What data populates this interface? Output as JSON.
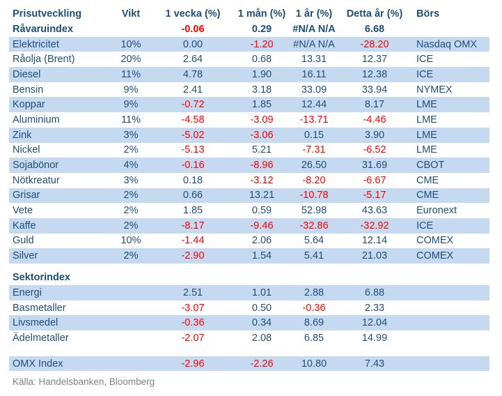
{
  "colors": {
    "text_navy": "#1F4E79",
    "negative_red": "#FF0000",
    "row_shade_blue": "#C5D9F1",
    "source_gray": "#808080"
  },
  "table": {
    "columns": [
      "Prisutveckling",
      "Vikt",
      "1 vecka (%)",
      "1 mån (%)",
      "1 år (%)",
      "Detta år (%)",
      "Börs"
    ],
    "rows": [
      {
        "name": "Råvaruindex",
        "bold": true,
        "shaded": false,
        "vikt": "",
        "w1": "-0.06",
        "m1": "0.29",
        "y1": "#N/A N/A",
        "ytd": "6.68",
        "bors": ""
      },
      {
        "name": "Elektricitet",
        "shaded": true,
        "vikt": "10%",
        "w1": "0.00",
        "m1": "-1.20",
        "y1": "#N/A N/A",
        "ytd": "-28.20",
        "bors": "Nasdaq OMX"
      },
      {
        "name": "Råolja (Brent)",
        "shaded": false,
        "vikt": "20%",
        "w1": "2.64",
        "m1": "0.68",
        "y1": "13.31",
        "ytd": "12.37",
        "bors": "ICE"
      },
      {
        "name": "Diesel",
        "shaded": true,
        "vikt": "11%",
        "w1": "4.78",
        "m1": "1.90",
        "y1": "16.11",
        "ytd": "12.38",
        "bors": "ICE"
      },
      {
        "name": "Bensin",
        "shaded": false,
        "vikt": "9%",
        "w1": "2.41",
        "m1": "3.18",
        "y1": "33.09",
        "ytd": "33.94",
        "bors": "NYMEX"
      },
      {
        "name": "Koppar",
        "shaded": true,
        "vikt": "9%",
        "w1": "-0.72",
        "m1": "1.85",
        "y1": "12.44",
        "ytd": "8.17",
        "bors": "LME"
      },
      {
        "name": "Aluminium",
        "shaded": false,
        "vikt": "11%",
        "w1": "-4.58",
        "m1": "-3.09",
        "y1": "-13.71",
        "ytd": "-4.46",
        "bors": "LME"
      },
      {
        "name": "Zink",
        "shaded": true,
        "vikt": "3%",
        "w1": "-5.02",
        "m1": "-3.06",
        "y1": "0.15",
        "ytd": "3.90",
        "bors": "LME"
      },
      {
        "name": "Nickel",
        "shaded": false,
        "vikt": "2%",
        "w1": "-5.13",
        "m1": "5.21",
        "y1": "-7.31",
        "ytd": "-6.52",
        "bors": "LME"
      },
      {
        "name": "Sojabönor",
        "shaded": true,
        "vikt": "4%",
        "w1": "-0.16",
        "m1": "-8.96",
        "y1": "26.50",
        "ytd": "31.69",
        "bors": "CBOT"
      },
      {
        "name": "Nötkreatur",
        "shaded": false,
        "vikt": "3%",
        "w1": "0.18",
        "m1": "-3.12",
        "y1": "-8.20",
        "ytd": "-6.67",
        "bors": "CME"
      },
      {
        "name": "Grisar",
        "shaded": true,
        "vikt": "2%",
        "w1": "0.66",
        "m1": "13.21",
        "y1": "-10.78",
        "ytd": "-5.17",
        "bors": "CME"
      },
      {
        "name": "Vete",
        "shaded": false,
        "vikt": "2%",
        "w1": "1.85",
        "m1": "0.59",
        "y1": "52.98",
        "ytd": "43.63",
        "bors": "Euronext"
      },
      {
        "name": "Kaffe",
        "shaded": true,
        "vikt": "2%",
        "w1": "-8.17",
        "m1": "-9.46",
        "y1": "-32.86",
        "ytd": "-32.92",
        "bors": "ICE"
      },
      {
        "name": "Guld",
        "shaded": false,
        "vikt": "10%",
        "w1": "-1.44",
        "m1": "2.06",
        "y1": "5.64",
        "ytd": "12.14",
        "bors": "COMEX"
      },
      {
        "name": "Silver",
        "shaded": true,
        "vikt": "2%",
        "w1": "-2.90",
        "m1": "1.54",
        "y1": "5.41",
        "ytd": "21.03",
        "bors": "COMEX"
      },
      {
        "type": "spacer",
        "height": 8
      },
      {
        "type": "section",
        "name": "Sektorindex"
      },
      {
        "name": "Energi",
        "shaded": true,
        "vikt": "",
        "w1": "2.51",
        "m1": "1.01",
        "y1": "2.88",
        "ytd": "6.88",
        "bors": ""
      },
      {
        "name": "Basmetaller",
        "shaded": false,
        "vikt": "",
        "w1": "-3.07",
        "m1": "0.50",
        "y1": "-0.36",
        "ytd": "2.33",
        "bors": ""
      },
      {
        "name": "Livsmedel",
        "shaded": true,
        "vikt": "",
        "w1": "-0.36",
        "m1": "0.34",
        "y1": "8.69",
        "ytd": "12.04",
        "bors": ""
      },
      {
        "name": "Ädelmetaller",
        "shaded": false,
        "vikt": "",
        "w1": "-2.07",
        "m1": "2.08",
        "y1": "6.85",
        "ytd": "14.99",
        "bors": ""
      },
      {
        "type": "spacer",
        "height": 15
      },
      {
        "name": "OMX Index",
        "shaded": true,
        "vikt": "",
        "w1": "-2.96",
        "m1": "-2.26",
        "y1": "10.80",
        "ytd": "7.43",
        "bors": ""
      }
    ]
  },
  "footer": {
    "source": "Källa: Handelsbanken, Bloomberg"
  }
}
